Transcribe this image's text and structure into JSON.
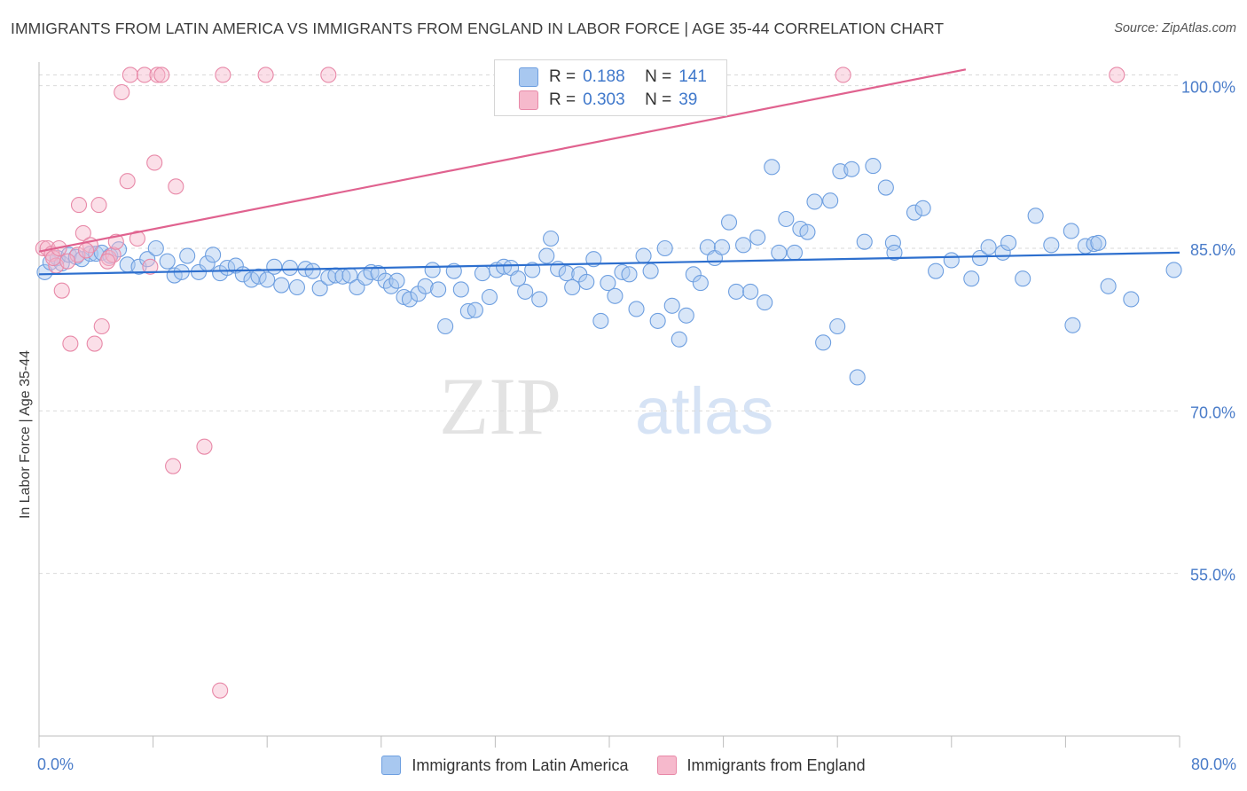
{
  "header": {
    "title": "IMMIGRANTS FROM LATIN AMERICA VS IMMIGRANTS FROM ENGLAND IN LABOR FORCE | AGE 35-44 CORRELATION CHART",
    "source": "Source: ZipAtlas.com"
  },
  "watermark": {
    "zip": "ZIP",
    "atlas": "atlas"
  },
  "legend_box": {
    "rows": [
      {
        "r_label": "R =",
        "r_value": "0.188",
        "n_label": "N =",
        "n_value": "141",
        "color": "#a8c8f0",
        "border": "#6e9fe0"
      },
      {
        "r_label": "R =",
        "r_value": "0.303",
        "n_label": "N =",
        "n_value": "39",
        "color": "#f6b9cc",
        "border": "#e889a8"
      }
    ]
  },
  "chart_data": {
    "type": "scatter",
    "title": "IMMIGRANTS FROM LATIN AMERICA VS IMMIGRANTS FROM ENGLAND IN LABOR FORCE | AGE 35-44 CORRELATION CHART",
    "xlabel": "",
    "ylabel": "In Labor Force | Age 35-44",
    "xlim": [
      0,
      80
    ],
    "ylim": [
      40,
      103
    ],
    "x_tick_labels": [
      "0.0%",
      "80.0%"
    ],
    "y_ticks": [
      55,
      70,
      85,
      100
    ],
    "y_tick_labels": [
      "55.0%",
      "70.0%",
      "85.0%",
      "100.0%"
    ],
    "grid": true,
    "legend": "bottom-center",
    "series": [
      {
        "name": "Immigrants from Latin America",
        "color": "#a8c8f0",
        "stroke": "#6e9fe0",
        "trend": {
          "x": [
            0,
            80
          ],
          "y": [
            82.6,
            84.6
          ],
          "color": "#2d6fce"
        },
        "points": [
          [
            0.4,
            82.8
          ],
          [
            0.8,
            83.7
          ],
          [
            1.3,
            84.1
          ],
          [
            1.6,
            83.6
          ],
          [
            2.1,
            84.4
          ],
          [
            2.6,
            84.2
          ],
          [
            3.0,
            84.0
          ],
          [
            3.6,
            84.5
          ],
          [
            4.0,
            84.5
          ],
          [
            4.4,
            84.6
          ],
          [
            5.0,
            84.3
          ],
          [
            5.6,
            84.9
          ],
          [
            6.2,
            83.5
          ],
          [
            7.0,
            83.3
          ],
          [
            7.6,
            84.0
          ],
          [
            8.2,
            85.0
          ],
          [
            9.0,
            83.8
          ],
          [
            9.5,
            82.5
          ],
          [
            10.0,
            82.8
          ],
          [
            10.4,
            84.3
          ],
          [
            11.2,
            82.8
          ],
          [
            11.8,
            83.6
          ],
          [
            12.2,
            84.4
          ],
          [
            12.7,
            82.7
          ],
          [
            13.2,
            83.2
          ],
          [
            13.8,
            83.4
          ],
          [
            14.3,
            82.6
          ],
          [
            14.9,
            82.1
          ],
          [
            15.4,
            82.4
          ],
          [
            16.0,
            82.1
          ],
          [
            16.5,
            83.3
          ],
          [
            17.0,
            81.6
          ],
          [
            17.6,
            83.2
          ],
          [
            18.1,
            81.4
          ],
          [
            18.7,
            83.1
          ],
          [
            19.2,
            82.9
          ],
          [
            19.7,
            81.3
          ],
          [
            20.3,
            82.3
          ],
          [
            20.8,
            82.5
          ],
          [
            21.3,
            82.4
          ],
          [
            21.8,
            82.5
          ],
          [
            22.3,
            81.4
          ],
          [
            22.9,
            82.3
          ],
          [
            23.3,
            82.8
          ],
          [
            23.8,
            82.7
          ],
          [
            24.3,
            82.0
          ],
          [
            24.7,
            81.5
          ],
          [
            25.1,
            82.0
          ],
          [
            25.6,
            80.5
          ],
          [
            26.0,
            80.3
          ],
          [
            26.6,
            80.8
          ],
          [
            27.1,
            81.5
          ],
          [
            27.6,
            83.0
          ],
          [
            28.0,
            81.2
          ],
          [
            28.5,
            77.8
          ],
          [
            29.1,
            82.9
          ],
          [
            29.6,
            81.2
          ],
          [
            30.1,
            79.2
          ],
          [
            30.6,
            79.3
          ],
          [
            31.1,
            82.7
          ],
          [
            31.6,
            80.5
          ],
          [
            32.1,
            83.0
          ],
          [
            32.6,
            83.3
          ],
          [
            33.1,
            83.2
          ],
          [
            33.6,
            82.2
          ],
          [
            34.1,
            81.0
          ],
          [
            34.6,
            83.0
          ],
          [
            35.1,
            80.3
          ],
          [
            35.6,
            84.3
          ],
          [
            35.9,
            85.9
          ],
          [
            36.4,
            83.1
          ],
          [
            37.0,
            82.7
          ],
          [
            37.4,
            81.4
          ],
          [
            37.9,
            82.6
          ],
          [
            38.4,
            81.9
          ],
          [
            38.9,
            84.0
          ],
          [
            39.4,
            78.3
          ],
          [
            39.9,
            81.8
          ],
          [
            40.4,
            80.6
          ],
          [
            40.9,
            82.8
          ],
          [
            41.4,
            82.6
          ],
          [
            41.9,
            79.4
          ],
          [
            42.4,
            84.3
          ],
          [
            42.9,
            82.9
          ],
          [
            43.4,
            78.3
          ],
          [
            43.9,
            85.0
          ],
          [
            44.4,
            79.7
          ],
          [
            44.9,
            76.6
          ],
          [
            45.4,
            78.8
          ],
          [
            45.9,
            82.6
          ],
          [
            46.4,
            81.8
          ],
          [
            46.9,
            85.1
          ],
          [
            47.4,
            84.1
          ],
          [
            47.9,
            85.1
          ],
          [
            48.4,
            87.4
          ],
          [
            48.9,
            81.0
          ],
          [
            49.4,
            85.3
          ],
          [
            49.9,
            81.0
          ],
          [
            50.4,
            86.0
          ],
          [
            50.9,
            80.0
          ],
          [
            51.4,
            92.5
          ],
          [
            51.9,
            84.6
          ],
          [
            52.4,
            87.7
          ],
          [
            53.0,
            84.6
          ],
          [
            53.4,
            86.8
          ],
          [
            53.9,
            86.5
          ],
          [
            54.4,
            89.3
          ],
          [
            55.0,
            76.3
          ],
          [
            55.5,
            89.4
          ],
          [
            56.0,
            77.8
          ],
          [
            56.2,
            92.1
          ],
          [
            57.0,
            92.3
          ],
          [
            57.4,
            73.1
          ],
          [
            57.9,
            85.6
          ],
          [
            58.5,
            92.6
          ],
          [
            59.4,
            90.6
          ],
          [
            59.9,
            85.5
          ],
          [
            60.0,
            84.6
          ],
          [
            61.4,
            88.3
          ],
          [
            62.0,
            88.7
          ],
          [
            62.9,
            82.9
          ],
          [
            64.0,
            83.9
          ],
          [
            65.4,
            82.2
          ],
          [
            66.0,
            84.1
          ],
          [
            66.6,
            85.1
          ],
          [
            67.6,
            84.6
          ],
          [
            68.0,
            85.5
          ],
          [
            69.0,
            82.2
          ],
          [
            69.9,
            88.0
          ],
          [
            71.0,
            85.3
          ],
          [
            72.4,
            86.6
          ],
          [
            72.5,
            77.9
          ],
          [
            73.4,
            85.2
          ],
          [
            74.0,
            85.4
          ],
          [
            74.3,
            85.5
          ],
          [
            75.0,
            81.5
          ],
          [
            76.6,
            80.3
          ],
          [
            79.6,
            83.0
          ]
        ]
      },
      {
        "name": "Immigrants from England",
        "color": "#f6b9cc",
        "stroke": "#e889a8",
        "trend": {
          "x": [
            0,
            65
          ],
          "y": [
            84.7,
            101.5
          ],
          "color": "#e0628f"
        },
        "points": [
          [
            0.3,
            85.0
          ],
          [
            0.6,
            85.0
          ],
          [
            0.9,
            84.5
          ],
          [
            1.2,
            83.4
          ],
          [
            1.6,
            81.1
          ],
          [
            2.2,
            76.2
          ],
          [
            2.7,
            84.4
          ],
          [
            2.8,
            89.0
          ],
          [
            3.1,
            86.4
          ],
          [
            3.6,
            85.3
          ],
          [
            3.9,
            76.2
          ],
          [
            4.2,
            89.0
          ],
          [
            4.4,
            77.8
          ],
          [
            4.9,
            84.1
          ],
          [
            5.2,
            84.4
          ],
          [
            5.4,
            85.6
          ],
          [
            5.8,
            99.4
          ],
          [
            6.2,
            91.2
          ],
          [
            6.4,
            101.0
          ],
          [
            6.9,
            85.9
          ],
          [
            7.4,
            101.0
          ],
          [
            7.8,
            83.3
          ],
          [
            8.1,
            92.9
          ],
          [
            8.3,
            101.0
          ],
          [
            8.6,
            101.0
          ],
          [
            9.4,
            64.9
          ],
          [
            9.6,
            90.7
          ],
          [
            11.6,
            66.7
          ],
          [
            12.7,
            44.2
          ],
          [
            12.9,
            101.0
          ],
          [
            15.9,
            101.0
          ],
          [
            20.3,
            101.0
          ],
          [
            56.4,
            101.0
          ],
          [
            75.6,
            101.0
          ],
          [
            1.0,
            84.1
          ],
          [
            4.8,
            83.8
          ],
          [
            1.4,
            85.0
          ],
          [
            3.3,
            84.8
          ],
          [
            2.0,
            83.8
          ]
        ]
      }
    ]
  }
}
